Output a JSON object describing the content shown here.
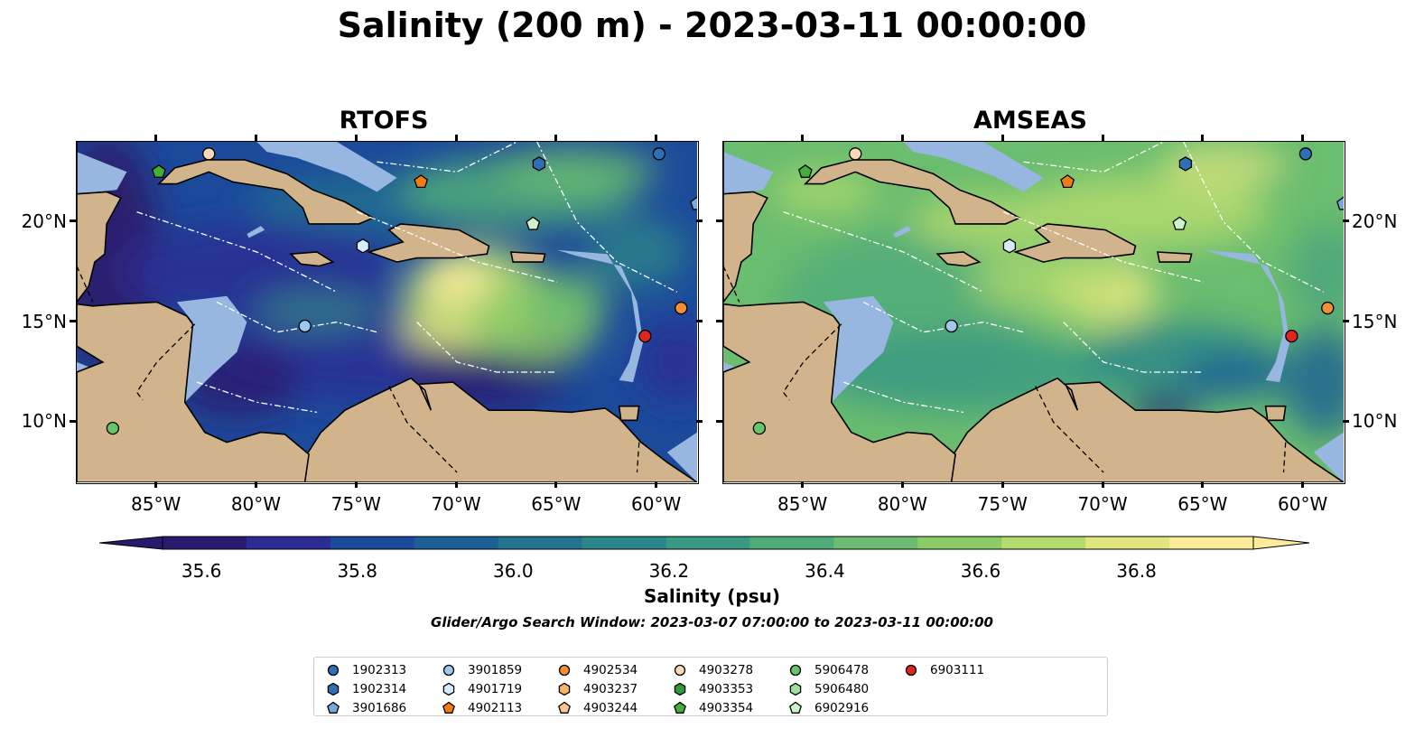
{
  "title": "Salinity (200 m) - 2023-03-11 00:00:00",
  "panels": [
    {
      "title": "RTOFS"
    },
    {
      "title": "AMSEAS"
    }
  ],
  "axes": {
    "lon_ticks": [
      "85°W",
      "80°W",
      "75°W",
      "70°W",
      "65°W",
      "60°W"
    ],
    "lat_ticks": [
      "20°N",
      "15°N",
      "10°N"
    ],
    "lon_range": [
      -89,
      -58
    ],
    "lat_range": [
      7,
      24
    ]
  },
  "colorbar": {
    "label": "Salinity (psu)",
    "ticks": [
      "35.6",
      "35.8",
      "36.0",
      "36.2",
      "36.4",
      "36.6",
      "36.8"
    ],
    "range": [
      35.55,
      36.95
    ],
    "extend": "both",
    "colors": [
      "#2a1a6e",
      "#2b2d94",
      "#1c4a9a",
      "#1c5f96",
      "#23738f",
      "#2b868a",
      "#3a9983",
      "#50ab7a",
      "#6bbd6f",
      "#8ccc66",
      "#b4db6e",
      "#e2e67f",
      "#fbeb9a"
    ]
  },
  "search_window": "Glider/Argo Search Window: 2023-03-07 07:00:00 to 2023-03-11 00:00:00",
  "colors": {
    "land": "#d2b48c",
    "shelf": "#97b6e0",
    "coast": "#000000"
  },
  "legend": [
    {
      "id": "1902313",
      "marker": "circle",
      "color": "#2f6fb5"
    },
    {
      "id": "1902314",
      "marker": "hexagon",
      "color": "#2f6fb5"
    },
    {
      "id": "3901686",
      "marker": "pentagon",
      "color": "#7aa6dc"
    },
    {
      "id": "3901859",
      "marker": "circle",
      "color": "#9ec9ee"
    },
    {
      "id": "4901719",
      "marker": "hexagon",
      "color": "#d6ebfb"
    },
    {
      "id": "4902113",
      "marker": "pentagon",
      "color": "#f07d12"
    },
    {
      "id": "4902534",
      "marker": "circle",
      "color": "#f39035"
    },
    {
      "id": "4903237",
      "marker": "hexagon",
      "color": "#f6b46a"
    },
    {
      "id": "4903244",
      "marker": "pentagon",
      "color": "#f8c78f"
    },
    {
      "id": "4903278",
      "marker": "circle",
      "color": "#fbd9b8"
    },
    {
      "id": "4903353",
      "marker": "hexagon",
      "color": "#2e9a3a"
    },
    {
      "id": "4903354",
      "marker": "pentagon",
      "color": "#45ad3b"
    },
    {
      "id": "5906478",
      "marker": "circle",
      "color": "#67c768"
    },
    {
      "id": "5906480",
      "marker": "hexagon",
      "color": "#9fe0a0"
    },
    {
      "id": "6902916",
      "marker": "pentagon",
      "color": "#ccf4cc"
    },
    {
      "id": "6903111",
      "marker": "circle",
      "color": "#e02420"
    }
  ],
  "floats": [
    {
      "id": "1902313",
      "lon": -59.9,
      "lat": 23.4
    },
    {
      "id": "1902314",
      "lon": -65.9,
      "lat": 22.9
    },
    {
      "id": "3901686",
      "lon": -58.0,
      "lat": 20.9
    },
    {
      "id": "3901859",
      "lon": -77.6,
      "lat": 14.8
    },
    {
      "id": "4901719",
      "lon": -74.7,
      "lat": 18.8
    },
    {
      "id": "4902113",
      "lon": -71.8,
      "lat": 22.0
    },
    {
      "id": "4902534",
      "lon": -58.8,
      "lat": 15.7
    },
    {
      "id": "4903278",
      "lon": -82.4,
      "lat": 23.4
    },
    {
      "id": "4903354",
      "lon": -84.9,
      "lat": 22.5
    },
    {
      "id": "5906478",
      "lon": -87.2,
      "lat": 9.7
    },
    {
      "id": "6902916",
      "lon": -66.2,
      "lat": 19.9
    },
    {
      "id": "6903111",
      "lon": -60.6,
      "lat": 14.3
    }
  ]
}
